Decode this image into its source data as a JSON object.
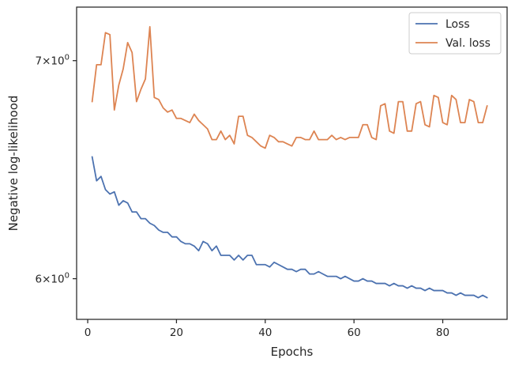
{
  "chart_data": {
    "type": "line",
    "xlabel": "Epochs",
    "ylabel": "Negative log-likelihood",
    "xlim": [
      -2.5,
      94.5
    ],
    "ylim": [
      5.83,
      7.27
    ],
    "yscale": "log",
    "grid": false,
    "legend_position": "top-right",
    "x_ticks": [
      0,
      20,
      40,
      60,
      80
    ],
    "x_tick_labels": [
      "0",
      "20",
      "40",
      "60",
      "80"
    ],
    "y_ticks": [
      6,
      7
    ],
    "y_tick_labels": [
      {
        "base": "6",
        "times": "×",
        "ten": "10",
        "exp": "0"
      },
      {
        "base": "7",
        "times": "×",
        "ten": "10",
        "exp": "0"
      }
    ],
    "x": [
      1,
      2,
      3,
      4,
      5,
      6,
      7,
      8,
      9,
      10,
      11,
      12,
      13,
      14,
      15,
      16,
      17,
      18,
      19,
      20,
      21,
      22,
      23,
      24,
      25,
      26,
      27,
      28,
      29,
      30,
      31,
      32,
      33,
      34,
      35,
      36,
      37,
      38,
      39,
      40,
      41,
      42,
      43,
      44,
      45,
      46,
      47,
      48,
      49,
      50,
      51,
      52,
      53,
      54,
      55,
      56,
      57,
      58,
      59,
      60,
      61,
      62,
      63,
      64,
      65,
      66,
      67,
      68,
      69,
      70,
      71,
      72,
      73,
      74,
      75,
      76,
      77,
      78,
      79,
      80,
      81,
      82,
      83,
      84,
      85,
      86,
      87,
      88,
      89,
      90
    ],
    "series": [
      {
        "name": "Loss",
        "color": "#4c72b0",
        "values": [
          6.54,
          6.43,
          6.45,
          6.39,
          6.37,
          6.38,
          6.32,
          6.34,
          6.33,
          6.29,
          6.29,
          6.26,
          6.26,
          6.24,
          6.23,
          6.21,
          6.2,
          6.2,
          6.18,
          6.18,
          6.16,
          6.15,
          6.15,
          6.14,
          6.12,
          6.16,
          6.15,
          6.12,
          6.14,
          6.1,
          6.1,
          6.1,
          6.08,
          6.1,
          6.08,
          6.1,
          6.1,
          6.06,
          6.06,
          6.06,
          6.05,
          6.07,
          6.06,
          6.05,
          6.04,
          6.04,
          6.03,
          6.04,
          6.04,
          6.02,
          6.02,
          6.03,
          6.02,
          6.01,
          6.01,
          6.01,
          6.0,
          6.01,
          6.0,
          5.99,
          5.99,
          6.0,
          5.99,
          5.99,
          5.98,
          5.98,
          5.98,
          5.97,
          5.98,
          5.97,
          5.97,
          5.96,
          5.97,
          5.96,
          5.96,
          5.95,
          5.96,
          5.95,
          5.95,
          5.95,
          5.94,
          5.94,
          5.93,
          5.94,
          5.93,
          5.93,
          5.93,
          5.92,
          5.93,
          5.92
        ]
      },
      {
        "name": "Val. loss",
        "color": "#dd8452",
        "values": [
          6.8,
          6.98,
          6.98,
          7.14,
          7.13,
          6.76,
          6.88,
          6.96,
          7.09,
          7.04,
          6.8,
          6.86,
          6.91,
          7.17,
          6.82,
          6.81,
          6.77,
          6.75,
          6.76,
          6.72,
          6.72,
          6.71,
          6.7,
          6.74,
          6.71,
          6.69,
          6.67,
          6.62,
          6.62,
          6.66,
          6.62,
          6.64,
          6.6,
          6.73,
          6.73,
          6.64,
          6.63,
          6.61,
          6.59,
          6.58,
          6.64,
          6.63,
          6.61,
          6.61,
          6.6,
          6.59,
          6.63,
          6.63,
          6.62,
          6.62,
          6.66,
          6.62,
          6.62,
          6.62,
          6.64,
          6.62,
          6.63,
          6.62,
          6.63,
          6.63,
          6.63,
          6.69,
          6.69,
          6.63,
          6.62,
          6.78,
          6.79,
          6.66,
          6.65,
          6.8,
          6.8,
          6.66,
          6.66,
          6.79,
          6.8,
          6.69,
          6.68,
          6.83,
          6.82,
          6.7,
          6.69,
          6.83,
          6.81,
          6.7,
          6.7,
          6.81,
          6.8,
          6.7,
          6.7,
          6.78
        ]
      }
    ]
  }
}
